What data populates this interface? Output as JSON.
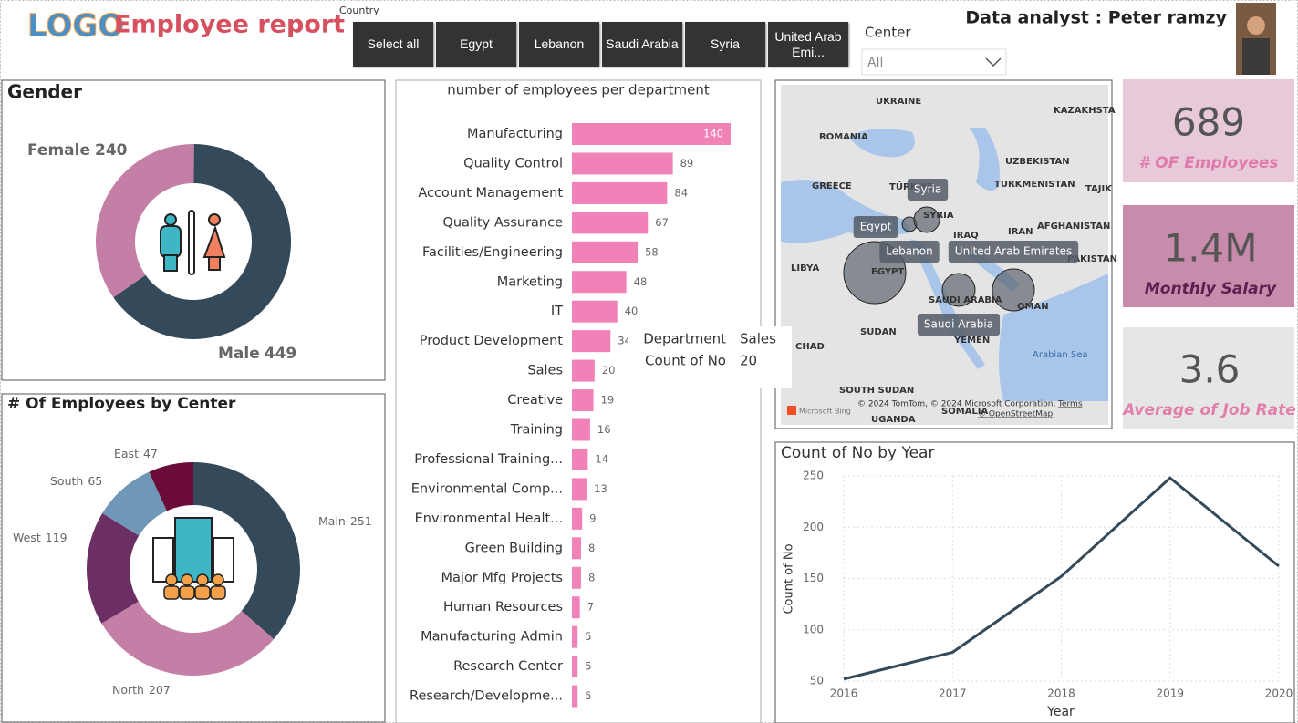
{
  "header": {
    "logo": "LOGO",
    "title": "Employee report",
    "country_label": "Country",
    "countries": [
      "Select all",
      "Egypt",
      "Lebanon",
      "Saudi Arabia",
      "Syria",
      "United Arab Emi..."
    ],
    "center_label": "Center",
    "center_value": "All",
    "analyst": "Data analyst : Peter ramzy"
  },
  "cards": [
    {
      "value": "689",
      "label": "# OF Employees"
    },
    {
      "value": "1.4M",
      "label": "Monthly Salary"
    },
    {
      "value": "3.6",
      "label": "Average of Job Rate"
    }
  ],
  "map": {
    "labels": [
      "UKRAINE",
      "KAZAKHSTA",
      "ROMANIA",
      "UZBEKISTAN",
      "GREECE",
      "TÜRKİYE",
      "TURKMENISTAN",
      "TAJIK",
      "SYRIA",
      "IRAQ",
      "IRAN",
      "AFGHANISTAN",
      "LIBYA",
      "EGYPT",
      "PAKISTAN",
      "SAUDI ARABIA",
      "OMAN",
      "SUDAN",
      "YEMEN",
      "CHAD",
      "Arabian Sea",
      "SOUTH SUDAN",
      "SOMALIA",
      "UGANDA"
    ],
    "bubble_labels": [
      "Syria",
      "Egypt",
      "Lebanon",
      "United Arab Emirates",
      "Saudi Arabia"
    ],
    "attribution": "© 2024 TomTom, © 2024 Microsoft Corporation,",
    "terms": "Terms",
    "osm": "© OpenStreetMap",
    "bing": "Microsoft Bing"
  },
  "tooltip": {
    "field1": "Department",
    "value1": "Sales",
    "field2": "Count of No",
    "value2": "20"
  },
  "chart_data": [
    {
      "type": "pie",
      "title": "Gender",
      "categories": [
        "Female",
        "Male"
      ],
      "values": [
        240,
        449
      ],
      "colors": [
        "#c47fa6",
        "#344a5a"
      ]
    },
    {
      "type": "pie",
      "title": "# Of Employees by Center",
      "categories": [
        "Main",
        "North",
        "West",
        "South",
        "East"
      ],
      "values": [
        251,
        207,
        119,
        65,
        47
      ],
      "colors": [
        "#344a5a",
        "#c47fa6",
        "#6b2f63",
        "#6f97b7",
        "#6a0b38"
      ]
    },
    {
      "type": "bar",
      "title": "number of employees per department",
      "categories": [
        "Manufacturing",
        "Quality Control",
        "Account Management",
        "Quality Assurance",
        "Facilities/Engineering",
        "Marketing",
        "IT",
        "Product Development",
        "Sales",
        "Creative",
        "Training",
        "Professional Training...",
        "Environmental Comp...",
        "Environmental Healt...",
        "Green Building",
        "Major Mfg Projects",
        "Human Resources",
        "Manufacturing Admin",
        "Research Center",
        "Research/Developme..."
      ],
      "values": [
        140,
        89,
        84,
        67,
        58,
        48,
        40,
        34,
        20,
        19,
        16,
        14,
        13,
        9,
        8,
        8,
        7,
        5,
        5,
        5
      ],
      "color": "#f082b8",
      "xlim": [
        0,
        140
      ]
    },
    {
      "type": "line",
      "title": "Count of No by Year",
      "x": [
        2016,
        2017,
        2018,
        2019,
        2020
      ],
      "values": [
        52,
        78,
        152,
        248,
        162
      ],
      "color": "#344a5a",
      "xlim": [
        2016,
        2020
      ],
      "xticks": [
        2016,
        2017,
        2018,
        2019,
        2020
      ],
      "ylim": [
        50,
        250
      ],
      "yticks": [
        50,
        100,
        150,
        200,
        250
      ],
      "xlabel": "Year",
      "ylabel": "Count of No",
      "grid": true
    }
  ]
}
